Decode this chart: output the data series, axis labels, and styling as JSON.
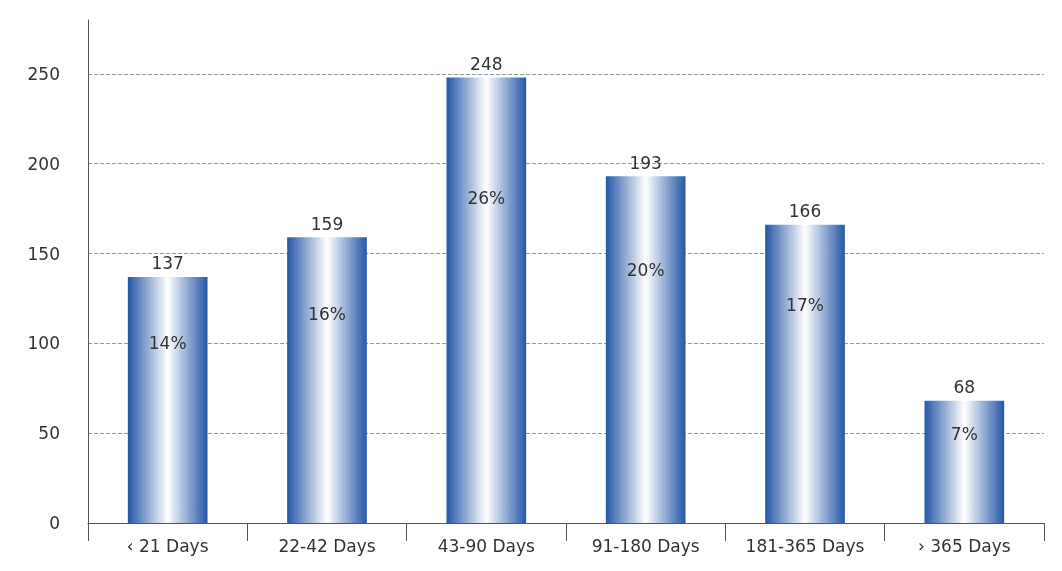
{
  "chart_data": {
    "type": "bar",
    "categories": [
      "‹ 21 Days",
      "22-42 Days",
      "43-90 Days",
      "91-180 Days",
      "181-365 Days",
      "› 365 Days"
    ],
    "values": [
      137,
      159,
      248,
      193,
      166,
      68
    ],
    "annotations": [
      "14%",
      "16%",
      "26%",
      "20%",
      "17%",
      "7%"
    ],
    "data_labels": true,
    "color": "#2557a7",
    "ylim": [
      0,
      280
    ],
    "yticks": [
      0,
      50,
      100,
      150,
      200,
      250
    ],
    "grid": "y"
  }
}
